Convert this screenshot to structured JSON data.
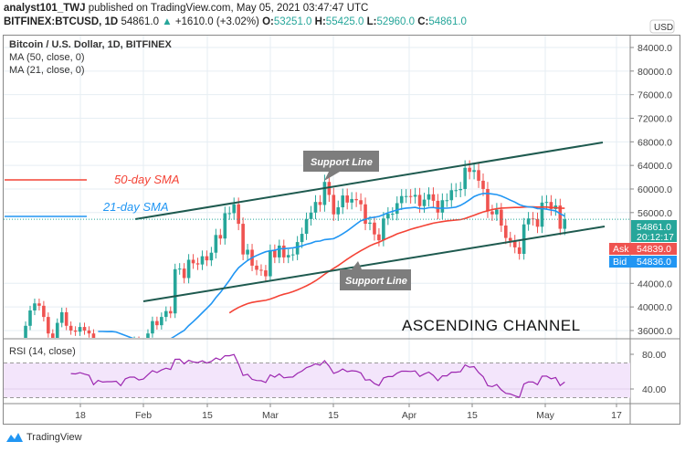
{
  "header": {
    "user": "analyst101_TWJ",
    "published": "published on TradingView.com, May 05, 2021 03:47:47 UTC",
    "symbol": "BITFINEX:BTCUSD, 1D",
    "last": "54861.0",
    "change": "+1610.0 (+3.02%)",
    "o_label": "O:",
    "o": "53251.0",
    "h_label": "H:",
    "h": "55425.0",
    "l_label": "L:",
    "l": "52960.0",
    "c_label": "C:",
    "c": "54861.0"
  },
  "legend": {
    "title": "Bitcoin / U.S. Dollar, 1D, BITFINEX",
    "ma50": "MA (50, close, 0)",
    "ma21": "MA (21, close, 0)",
    "rsi": "RSI (14, close)"
  },
  "annotations": {
    "support_top": "Support Line",
    "support_bottom": "Support Line",
    "sma50": "50-day SMA",
    "sma21": "21-day SMA",
    "channel": "ASCENDING CHANNEL"
  },
  "price_axis": {
    "currency": "USD",
    "ticks": [
      "84000.0",
      "80000.0",
      "76000.0",
      "72000.0",
      "68000.0",
      "64000.0",
      "60000.0",
      "56000.0",
      "44000.0",
      "40000.0",
      "36000.0"
    ],
    "last": "54861.0",
    "countdown": "20:12:17",
    "ask_label": "Ask",
    "ask": "54839.0",
    "bid_label": "Bid",
    "bid": "54836.0"
  },
  "rsi_axis": {
    "ticks": [
      "80.00",
      "40.00"
    ],
    "bands": [
      70,
      30
    ]
  },
  "time_axis": {
    "ticks": [
      "18",
      "Feb",
      "15",
      "Mar",
      "15",
      "Apr",
      "15",
      "May",
      "17"
    ]
  },
  "footer": {
    "brand": "TradingView"
  },
  "colors": {
    "up": "#26a69a",
    "down": "#ef5350",
    "ma50": "#f44336",
    "ma21": "#2196f3",
    "rsi": "#9c27b0",
    "channel": "#1e5a4f",
    "ask": "#ef5350",
    "bid": "#2196f3"
  },
  "chart_data": {
    "type": "candlestick",
    "start_date": "2021-01-02",
    "interval": "1D",
    "close": [
      32000,
      33000,
      32000,
      34000,
      36800,
      39400,
      40600,
      40200,
      38300,
      35500,
      33900,
      37300,
      39100,
      36800,
      36000,
      35800,
      36600,
      36000,
      35500,
      30800,
      33000,
      32100,
      32300,
      32300,
      32500,
      30400,
      33400,
      34300,
      34300,
      33100,
      33500,
      35500,
      37600,
      36900,
      38300,
      39300,
      38900,
      46400,
      46500,
      44900,
      48000,
      47400,
      47200,
      48600,
      47900,
      49200,
      52200,
      51600,
      55900,
      55900,
      57400,
      54100,
      48900,
      49700,
      47000,
      46300,
      46200,
      45200,
      49600,
      48400,
      50400,
      48400,
      48800,
      48900,
      51000,
      52400,
      54900,
      56000,
      57800,
      57300,
      61200,
      59000,
      55700,
      56900,
      58900,
      57700,
      58300,
      58100,
      57400,
      54100,
      54300,
      52300,
      51300,
      55000,
      55800,
      55800,
      57600,
      58800,
      58800,
      58700,
      59000,
      57100,
      58200,
      59100,
      58000,
      56000,
      58100,
      58100,
      59800,
      59800,
      60000,
      63600,
      62900,
      63200,
      61400,
      60000,
      56200,
      55700,
      56500,
      53800,
      51700,
      51200,
      50100,
      49000,
      54000,
      55000,
      54900,
      53600,
      57700,
      57800,
      56600,
      57200,
      53251,
      54861
    ],
    "ylim": [
      35000,
      86000
    ],
    "rsi_ylim": [
      20,
      92
    ]
  }
}
